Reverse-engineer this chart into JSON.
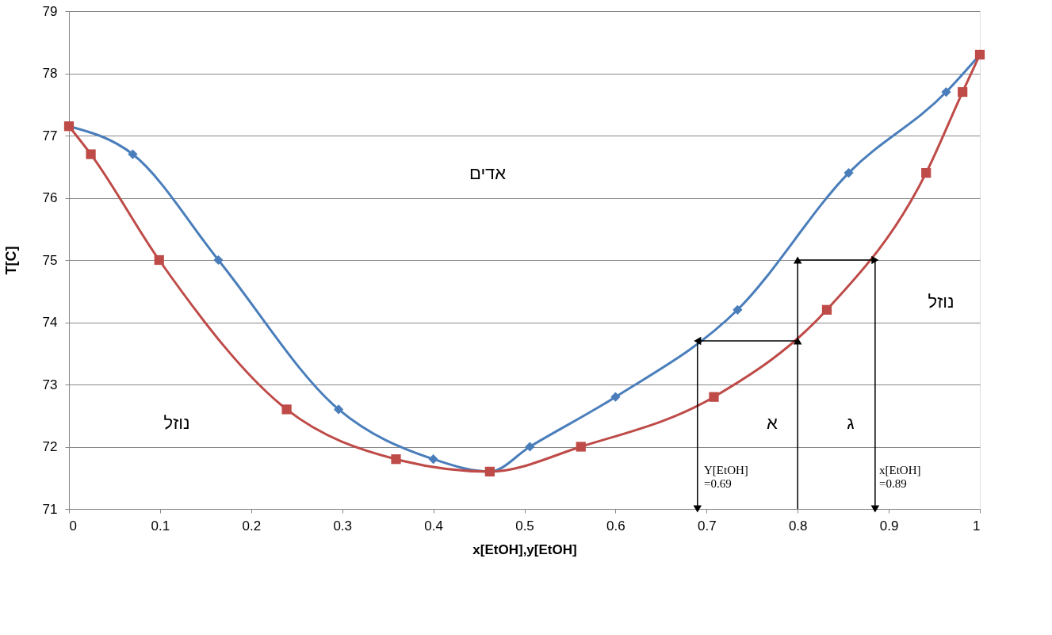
{
  "chart_data": {
    "type": "line",
    "xlabel": "x[EtOH],y[EtOH]",
    "ylabel": "T[C]",
    "xlim": [
      0,
      1
    ],
    "xticks": [
      0,
      0.1,
      0.2,
      0.3,
      0.4,
      0.5,
      0.6,
      0.7,
      0.8,
      0.9,
      1
    ],
    "ylim": [
      71,
      79
    ],
    "yticks": [
      71,
      72,
      73,
      74,
      75,
      76,
      77,
      78,
      79
    ],
    "grid": "y",
    "series": [
      {
        "color": "#4a7ebb",
        "marker": "diamond",
        "x": [
          0,
          0.07,
          0.164,
          0.296,
          0.4,
          0.462,
          0.506,
          0.6,
          0.734,
          0.856,
          0.963,
          1
        ],
        "values": [
          77.15,
          76.7,
          75.0,
          72.6,
          71.8,
          71.6,
          72.0,
          72.8,
          74.2,
          76.4,
          77.7,
          78.3
        ]
      },
      {
        "color": "#be4b48",
        "marker": "square",
        "x": [
          0,
          0.024,
          0.099,
          0.239,
          0.359,
          0.462,
          0.562,
          0.708,
          0.832,
          0.941,
          0.981,
          1
        ],
        "values": [
          77.15,
          76.7,
          75.0,
          72.6,
          71.8,
          71.6,
          72.0,
          72.8,
          74.2,
          76.4,
          77.7,
          78.3
        ]
      },
      {
        "color": "#000000",
        "marker": "triangle",
        "x": [
          0.8,
          0.8,
          0.69,
          0.69
        ],
        "values": [
          71,
          73.7,
          73.7,
          71
        ]
      },
      {
        "color": "#000000",
        "marker": "triangle",
        "x": [
          0.8,
          0.8,
          0.885,
          0.885
        ],
        "values": [
          73.7,
          75,
          75,
          71
        ]
      }
    ],
    "annotations": [
      "אדים",
      "נוזל",
      "נוזל",
      "א",
      "ג",
      "Y[EtOH]\n=0.69",
      "x[EtOH]\n=0.89"
    ]
  }
}
